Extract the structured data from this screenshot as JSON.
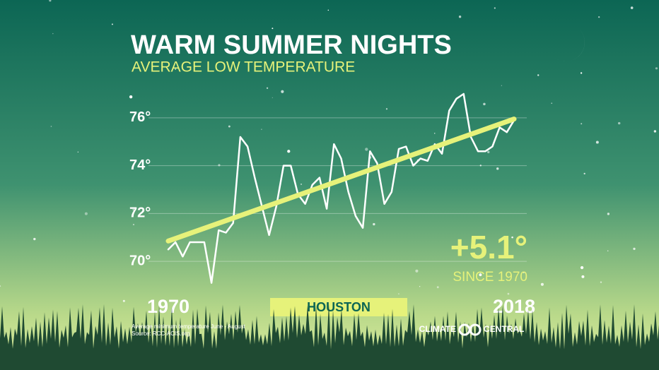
{
  "chart_data": {
    "type": "line",
    "title": "WARM SUMMER NIGHTS",
    "subtitle": "AVERAGE LOW TEMPERATURE",
    "location": "HOUSTON",
    "annotation": "+5.1°",
    "annotation_sub": "SINCE 1970",
    "source_line1": "Average minimum temperature June - August",
    "source_line2": "Source: RCC-ACIS.org",
    "logo_left": "CLIMATE",
    "logo_right": "CENTRAL",
    "xlim": [
      1970,
      2018
    ],
    "xticks": [
      1970,
      2018
    ],
    "ylim": [
      69,
      77
    ],
    "yticks": [
      {
        "value": 70,
        "label": "70°"
      },
      {
        "value": 72,
        "label": "72°"
      },
      {
        "value": 74,
        "label": "74°"
      },
      {
        "value": 76,
        "label": "76°"
      }
    ],
    "grid": true,
    "series": [
      {
        "name": "Average low",
        "color": "#ffffff",
        "values": [
          70.5,
          70.8,
          70.2,
          70.8,
          70.8,
          70.8,
          69.1,
          71.3,
          71.2,
          71.6,
          75.2,
          74.8,
          73.5,
          72.3,
          71.1,
          72.3,
          74.0,
          74.0,
          72.8,
          72.4,
          73.2,
          73.5,
          72.2,
          74.9,
          74.3,
          72.9,
          71.9,
          71.4,
          74.6,
          74.1,
          72.4,
          72.9,
          74.7,
          74.8,
          74.0,
          74.3,
          74.2,
          74.9,
          74.5,
          76.3,
          76.8,
          77.0,
          75.2,
          74.6,
          74.6,
          74.8,
          75.6,
          75.4,
          75.9
        ]
      },
      {
        "name": "Trend",
        "color": "#e6f27a",
        "values": [
          70.85,
          75.95
        ]
      }
    ]
  }
}
